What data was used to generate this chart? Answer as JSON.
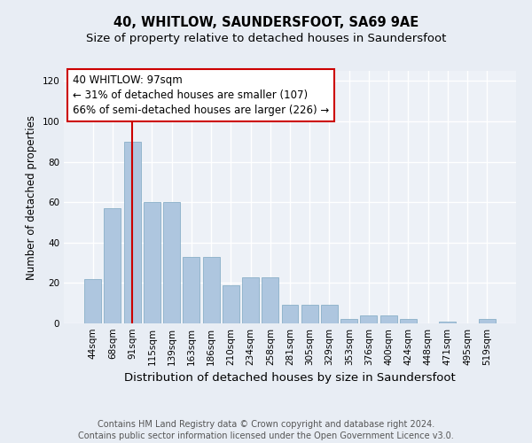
{
  "title": "40, WHITLOW, SAUNDERSFOOT, SA69 9AE",
  "subtitle": "Size of property relative to detached houses in Saundersfoot",
  "xlabel": "Distribution of detached houses by size in Saundersfoot",
  "ylabel": "Number of detached properties",
  "categories": [
    "44sqm",
    "68sqm",
    "91sqm",
    "115sqm",
    "139sqm",
    "163sqm",
    "186sqm",
    "210sqm",
    "234sqm",
    "258sqm",
    "281sqm",
    "305sqm",
    "329sqm",
    "353sqm",
    "376sqm",
    "400sqm",
    "424sqm",
    "448sqm",
    "471sqm",
    "495sqm",
    "519sqm"
  ],
  "values": [
    22,
    57,
    90,
    60,
    60,
    33,
    33,
    19,
    23,
    23,
    9,
    9,
    9,
    2,
    4,
    4,
    2,
    0,
    1,
    0,
    2
  ],
  "bar_color": "#aec6df",
  "bar_edge_color": "#8aafc8",
  "highlight_bar_index": 2,
  "highlight_color": "#cc0000",
  "ylim": [
    0,
    125
  ],
  "yticks": [
    0,
    20,
    40,
    60,
    80,
    100,
    120
  ],
  "annotation_line1": "40 WHITLOW: 97sqm",
  "annotation_line2": "← 31% of detached houses are smaller (107)",
  "annotation_line3": "66% of semi-detached houses are larger (226) →",
  "footer_line1": "Contains HM Land Registry data © Crown copyright and database right 2024.",
  "footer_line2": "Contains public sector information licensed under the Open Government Licence v3.0.",
  "background_color": "#e8edf4",
  "plot_background_color": "#edf1f7",
  "grid_color": "#ffffff",
  "title_fontsize": 10.5,
  "subtitle_fontsize": 9.5,
  "xlabel_fontsize": 9.5,
  "ylabel_fontsize": 8.5,
  "tick_fontsize": 7.5,
  "annotation_fontsize": 8.5,
  "footer_fontsize": 7.0
}
